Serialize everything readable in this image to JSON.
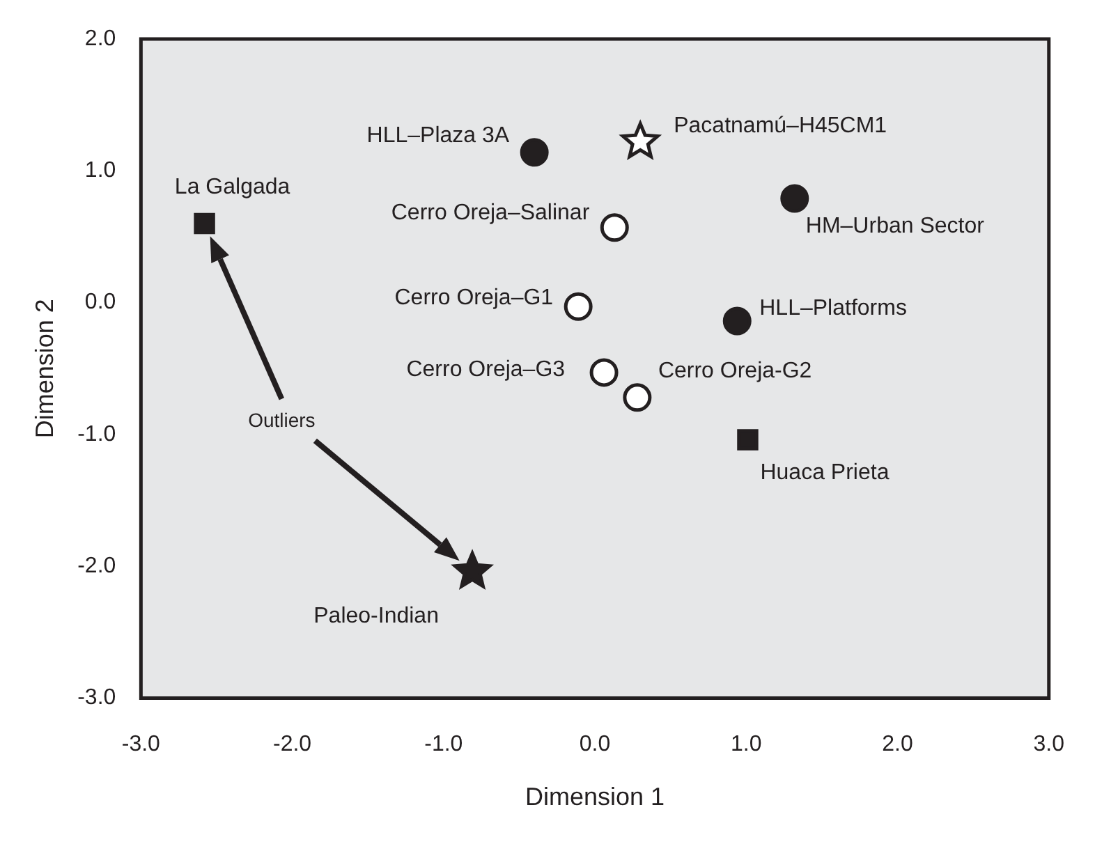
{
  "chart_data": {
    "type": "scatter",
    "xlabel": "Dimension 1",
    "ylabel": "Dimension 2",
    "xlim": [
      -3,
      3
    ],
    "xticks": [
      {
        "value": -3,
        "label": "-3.0"
      },
      {
        "value": -2,
        "label": "-2.0"
      },
      {
        "value": -1,
        "label": "-1.0"
      },
      {
        "value": 0,
        "label": "0.0"
      },
      {
        "value": 1,
        "label": "1.0"
      },
      {
        "value": 2,
        "label": "2.0"
      },
      {
        "value": 3,
        "label": "3.0"
      }
    ],
    "ylim": [
      -3,
      2
    ],
    "yticks": [
      {
        "value": -3,
        "label": "-3.0"
      },
      {
        "value": -2,
        "label": "-2.0"
      },
      {
        "value": -1,
        "label": "-1.0"
      },
      {
        "value": 0,
        "label": "0.0"
      },
      {
        "value": 1,
        "label": "1.0"
      },
      {
        "value": 2,
        "label": "2.0"
      }
    ],
    "grid": false,
    "legend": false,
    "series": [
      {
        "color": "#231f20",
        "marker": "square",
        "x": [
          -2.58,
          1.01
        ],
        "values": [
          0.6,
          -1.04
        ]
      },
      {
        "color": "#231f20",
        "marker": "star",
        "x": [
          -0.81
        ],
        "values": [
          -2.04
        ]
      },
      {
        "color": "#231f20",
        "marker": "circle",
        "x": [
          -0.4,
          1.32,
          0.94
        ],
        "values": [
          1.14,
          0.79,
          -0.14
        ]
      },
      {
        "color": "#ffffff",
        "marker": "circle",
        "x": [
          0.13,
          -0.11,
          0.06,
          0.28
        ],
        "values": [
          0.57,
          -0.03,
          -0.53,
          -0.72
        ]
      },
      {
        "color": "#ffffff",
        "marker": "star",
        "x": [
          0.3
        ],
        "values": [
          1.22
        ]
      }
    ],
    "annotations": [
      {
        "text": "La Galgada",
        "x": -2.58,
        "y": 0.6
      },
      {
        "text": "Huaca Prieta",
        "x": 1.01,
        "y": -1.04
      },
      {
        "text": "Paleo-Indian",
        "x": -0.81,
        "y": -2.04
      },
      {
        "text": "HLL–Plaza 3A",
        "x": -0.4,
        "y": 1.14
      },
      {
        "text": "HM–Urban Sector",
        "x": 1.32,
        "y": 0.79
      },
      {
        "text": "HLL–Platforms",
        "x": 0.94,
        "y": -0.14
      },
      {
        "text": "Cerro Oreja–Salinar",
        "x": 0.13,
        "y": 0.57
      },
      {
        "text": "Cerro Oreja–G1",
        "x": -0.11,
        "y": -0.03
      },
      {
        "text": "Cerro Oreja–G3",
        "x": 0.06,
        "y": -0.53
      },
      {
        "text": "Cerro Oreja-G2",
        "x": 0.28,
        "y": -0.72
      },
      {
        "text": "Pacatnamú–H45CM1",
        "x": 0.3,
        "y": 1.22
      },
      "Outliers"
    ]
  }
}
